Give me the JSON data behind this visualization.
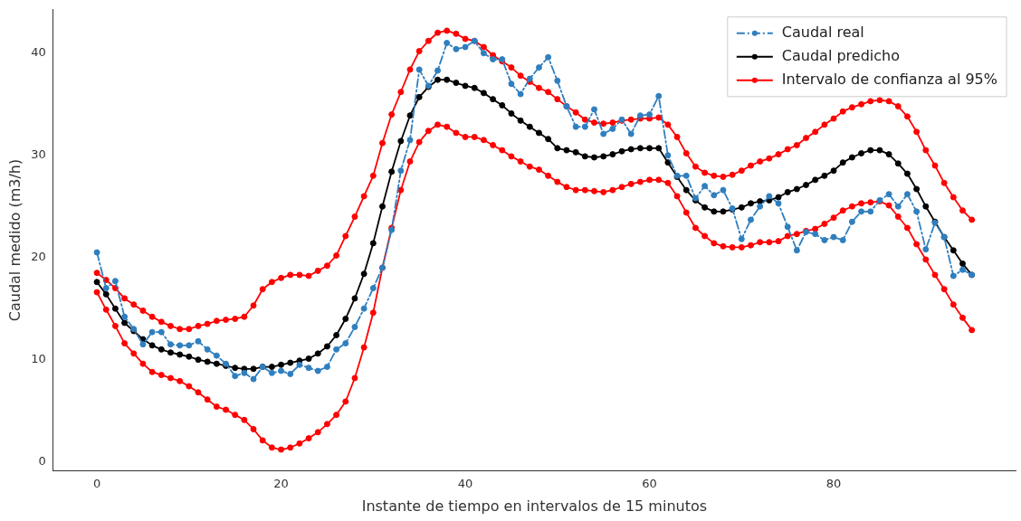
{
  "chart_data": {
    "type": "line",
    "xlabel": "Instante de tiempo en intervalos de 15 minutos",
    "ylabel": "Caudal medido (m3/h)",
    "x": [
      0,
      1,
      2,
      3,
      4,
      5,
      6,
      7,
      8,
      9,
      10,
      11,
      12,
      13,
      14,
      15,
      16,
      17,
      18,
      19,
      20,
      21,
      22,
      23,
      24,
      25,
      26,
      27,
      28,
      29,
      30,
      31,
      32,
      33,
      34,
      35,
      36,
      37,
      38,
      39,
      40,
      41,
      42,
      43,
      44,
      45,
      46,
      47,
      48,
      49,
      50,
      51,
      52,
      53,
      54,
      55,
      56,
      57,
      58,
      59,
      60,
      61,
      62,
      63,
      64,
      65,
      66,
      67,
      68,
      69,
      70,
      71,
      72,
      73,
      74,
      75,
      76,
      77,
      78,
      79,
      80,
      81,
      82,
      83,
      84,
      85,
      86,
      87,
      88,
      89,
      90,
      91,
      92,
      93,
      94,
      95
    ],
    "series": [
      {
        "name": "Caudal real",
        "color": "#2f7fbf",
        "line_style": "dashdot",
        "values": [
          20.5,
          17,
          17.7,
          14.2,
          13,
          11.5,
          12.7,
          12.7,
          11.5,
          11.4,
          11.4,
          11.8,
          11,
          10.4,
          9.6,
          8.4,
          8.7,
          8.1,
          9.3,
          8.7,
          8.9,
          8.6,
          9.5,
          9.2,
          8.9,
          9.3,
          11,
          11.6,
          13.2,
          15,
          17,
          19,
          22.7,
          28.5,
          31.5,
          38.4,
          36.8,
          38.3,
          41,
          40.4,
          40.6,
          41.2,
          40,
          39.4,
          39.4,
          37,
          36,
          37.5,
          38.6,
          39.6,
          37.3,
          34.8,
          32.8,
          32.8,
          34.5,
          32.1,
          32.6,
          33.5,
          32.1,
          33.9,
          34,
          35.8,
          30,
          28,
          28,
          25.8,
          27,
          26.1,
          26.6,
          24.8,
          21.8,
          23.7,
          25,
          26,
          25.3,
          23,
          20.7,
          22.5,
          22.3,
          21.7,
          22,
          21.7,
          23.5,
          24.5,
          24.5,
          25.6,
          26.2,
          25,
          26.2,
          24.5,
          20.8,
          23.4,
          22,
          18.2,
          18.8,
          18.3
        ]
      },
      {
        "name": "Caudal predicho",
        "color": "#000000",
        "values": [
          17.6,
          16.4,
          15,
          13.6,
          12.8,
          12,
          11.4,
          11,
          10.7,
          10.5,
          10.3,
          10,
          9.8,
          9.6,
          9.4,
          9.2,
          9.1,
          9.1,
          9.3,
          9.3,
          9.5,
          9.7,
          9.9,
          10.1,
          10.6,
          11.3,
          12.4,
          14,
          16,
          18.4,
          21.4,
          25,
          28.4,
          31.4,
          33.9,
          35.7,
          36.7,
          37.4,
          37.4,
          37.1,
          36.8,
          36.6,
          36.1,
          35.5,
          34.9,
          34.1,
          33.4,
          32.8,
          32.2,
          31.6,
          30.7,
          30.5,
          30.3,
          29.9,
          29.8,
          29.9,
          30.1,
          30.4,
          30.6,
          30.7,
          30.7,
          30.7,
          29.3,
          27.9,
          26.6,
          25.6,
          24.9,
          24.5,
          24.5,
          24.7,
          24.9,
          25.3,
          25.5,
          25.6,
          25.9,
          26.4,
          26.7,
          27.1,
          27.6,
          28,
          28.5,
          29.3,
          29.8,
          30.2,
          30.5,
          30.5,
          30.1,
          29.2,
          28.2,
          26.7,
          25,
          23.5,
          22,
          20.7,
          19.4,
          18.3
        ]
      },
      {
        "name": "Intervalo de confianza al 95%",
        "color": "#ff0000",
        "values": [
          18.5,
          17.8,
          17,
          16,
          15.4,
          14.8,
          14.2,
          13.7,
          13.3,
          13,
          13,
          13.3,
          13.5,
          13.8,
          13.9,
          14,
          14.2,
          15.3,
          16.9,
          17.6,
          18,
          18.3,
          18.3,
          18.2,
          18.7,
          19.2,
          20.2,
          22.1,
          24,
          26,
          28,
          31.2,
          34,
          36.2,
          38.4,
          40.2,
          41.2,
          42,
          42.2,
          41.9,
          41.4,
          41.2,
          40.6,
          39.8,
          39.2,
          38.6,
          37.8,
          37.2,
          36.6,
          36.2,
          35.5,
          34.8,
          34.2,
          33.5,
          33.2,
          33.1,
          33.2,
          33.4,
          33.5,
          33.6,
          33.6,
          33.7,
          33,
          31.8,
          30.2,
          28.9,
          28.3,
          28,
          27.9,
          28.1,
          28.5,
          29,
          29.4,
          29.7,
          30.1,
          30.6,
          31,
          31.7,
          32.3,
          33,
          33.6,
          34.3,
          34.7,
          35,
          35.3,
          35.4,
          35.3,
          34.8,
          33.8,
          32.3,
          30.5,
          29,
          27.3,
          25.9,
          24.6,
          23.7
        ]
      },
      {
        "color": "#ff0000",
        "values": [
          16.6,
          14.9,
          13.3,
          11.6,
          10.6,
          9.6,
          8.8,
          8.5,
          8.2,
          7.9,
          7.4,
          6.8,
          6.1,
          5.4,
          5.1,
          4.6,
          4.1,
          3.2,
          2.1,
          1.4,
          1.2,
          1.4,
          1.8,
          2.3,
          2.9,
          3.7,
          4.6,
          5.9,
          8.2,
          11.2,
          14.6,
          19,
          22.9,
          26.6,
          29.4,
          31.3,
          32.4,
          33,
          32.8,
          32.2,
          31.8,
          31.8,
          31.5,
          31,
          30.5,
          29.9,
          29.4,
          28.9,
          28.6,
          28,
          27.4,
          26.9,
          26.6,
          26.6,
          26.5,
          26.4,
          26.6,
          26.9,
          27.2,
          27.4,
          27.6,
          27.6,
          27.3,
          26,
          24.4,
          22.9,
          22.1,
          21.4,
          21.1,
          21,
          21,
          21.2,
          21.5,
          21.5,
          21.6,
          22.1,
          22.3,
          22.6,
          22.8,
          23.3,
          23.9,
          24.6,
          25,
          25.3,
          25.4,
          25.5,
          25.1,
          24,
          22.9,
          21.3,
          19.8,
          18.3,
          16.9,
          15.4,
          14.1,
          12.9
        ]
      }
    ],
    "xlim": [
      -4.75,
      99.75
    ],
    "xticks": [
      0,
      20,
      40,
      60,
      80
    ],
    "ylim": [
      -0.85,
      44.25
    ],
    "yticks": [
      0,
      10,
      20,
      30,
      40
    ],
    "grid": false,
    "legend": "top right",
    "marker": "circle",
    "line_style": "solid"
  }
}
